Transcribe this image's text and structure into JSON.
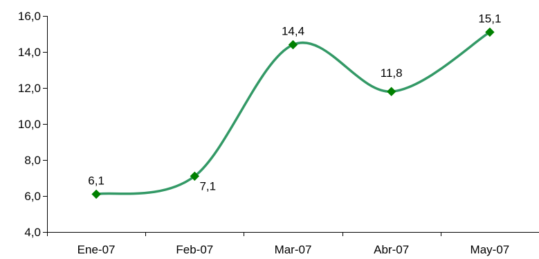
{
  "chart_data": {
    "type": "line",
    "title": "",
    "xlabel": "",
    "ylabel": "",
    "categories": [
      "Ene-07",
      "Feb-07",
      "Mar-07",
      "Abr-07",
      "May-07"
    ],
    "series": [
      {
        "values": [
          6.1,
          7.1,
          14.4,
          11.8,
          15.1
        ],
        "labels": [
          "6,1",
          "7,1",
          "14,4",
          "11,8",
          "15,1"
        ],
        "color": "#339966",
        "marker": "diamond",
        "marker_color": "#008000",
        "smooth": true
      }
    ],
    "ylim": [
      4.0,
      16.0
    ],
    "y_ticks": [
      4.0,
      6.0,
      8.0,
      10.0,
      12.0,
      14.0,
      16.0
    ],
    "y_tick_labels": [
      "4,0",
      "6,0",
      "8,0",
      "10,0",
      "12,0",
      "14,0",
      "16,0"
    ],
    "grid": false,
    "legend": "none"
  }
}
